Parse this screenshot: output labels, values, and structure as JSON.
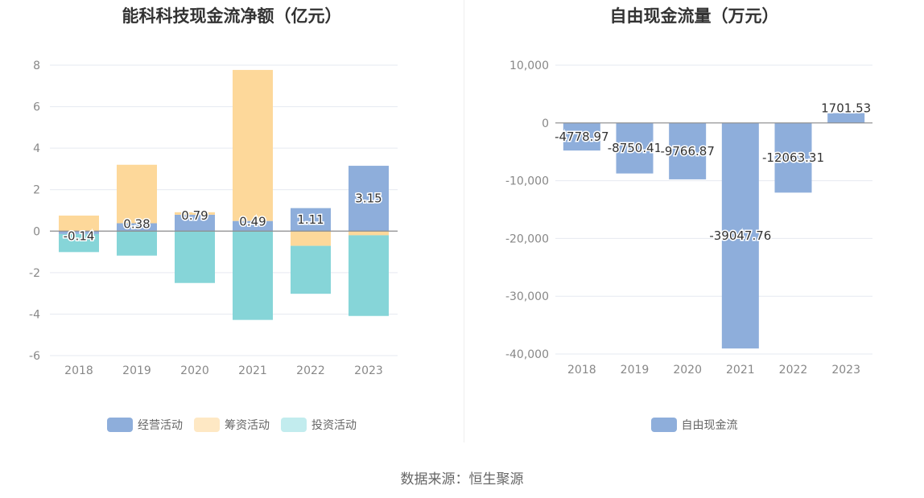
{
  "source": "数据来源：恒生聚源",
  "chart_data": [
    {
      "type": "bar",
      "stacked": true,
      "title": "能科科技现金流净额（亿元）",
      "categories": [
        "2018",
        "2019",
        "2020",
        "2021",
        "2022",
        "2023"
      ],
      "ylim": [
        -6,
        8
      ],
      "yticks": [
        8,
        6,
        4,
        2,
        0,
        -2,
        -4,
        -6
      ],
      "grid": true,
      "legend_position": "bottom-center",
      "series": [
        {
          "name": "经营活动",
          "color": "#8eaedb",
          "values": [
            -0.14,
            0.38,
            0.79,
            0.49,
            1.11,
            3.15
          ],
          "labels": [
            "-0.14",
            "0.38",
            "0.79",
            "0.49",
            "1.11",
            "3.15"
          ]
        },
        {
          "name": "筹资活动",
          "color": "#fdd89a",
          "values": [
            0.75,
            2.82,
            0.12,
            7.28,
            -0.71,
            -0.2
          ]
        },
        {
          "name": "投资活动",
          "color": "#86d5d8",
          "values": [
            -0.87,
            -1.18,
            -2.5,
            -4.28,
            -2.31,
            -3.89
          ]
        }
      ],
      "legend_colors": {
        "经营活动": "#8eaedb",
        "筹资活动": "#fee8c4",
        "投资活动": "#c2ecee"
      }
    },
    {
      "type": "bar",
      "title": "自由现金流量（万元）",
      "categories": [
        "2018",
        "2019",
        "2020",
        "2021",
        "2022",
        "2023"
      ],
      "ylim": [
        -40000,
        10000
      ],
      "yticks": [
        "10,000",
        "0",
        "-10,000",
        "-20,000",
        "-30,000",
        "-40,000"
      ],
      "ytick_values": [
        10000,
        0,
        -10000,
        -20000,
        -30000,
        -40000
      ],
      "grid": true,
      "legend_position": "bottom-center",
      "series": [
        {
          "name": "自由现金流",
          "color": "#8eaedb",
          "values": [
            -4778.97,
            -8750.41,
            -9766.87,
            -39047.76,
            -12063.31,
            1701.53
          ],
          "labels": [
            "-4778.97",
            "-8750.41",
            "-9766.87",
            "-39047.76",
            "-12063.31",
            "1701.53"
          ]
        }
      ]
    }
  ]
}
